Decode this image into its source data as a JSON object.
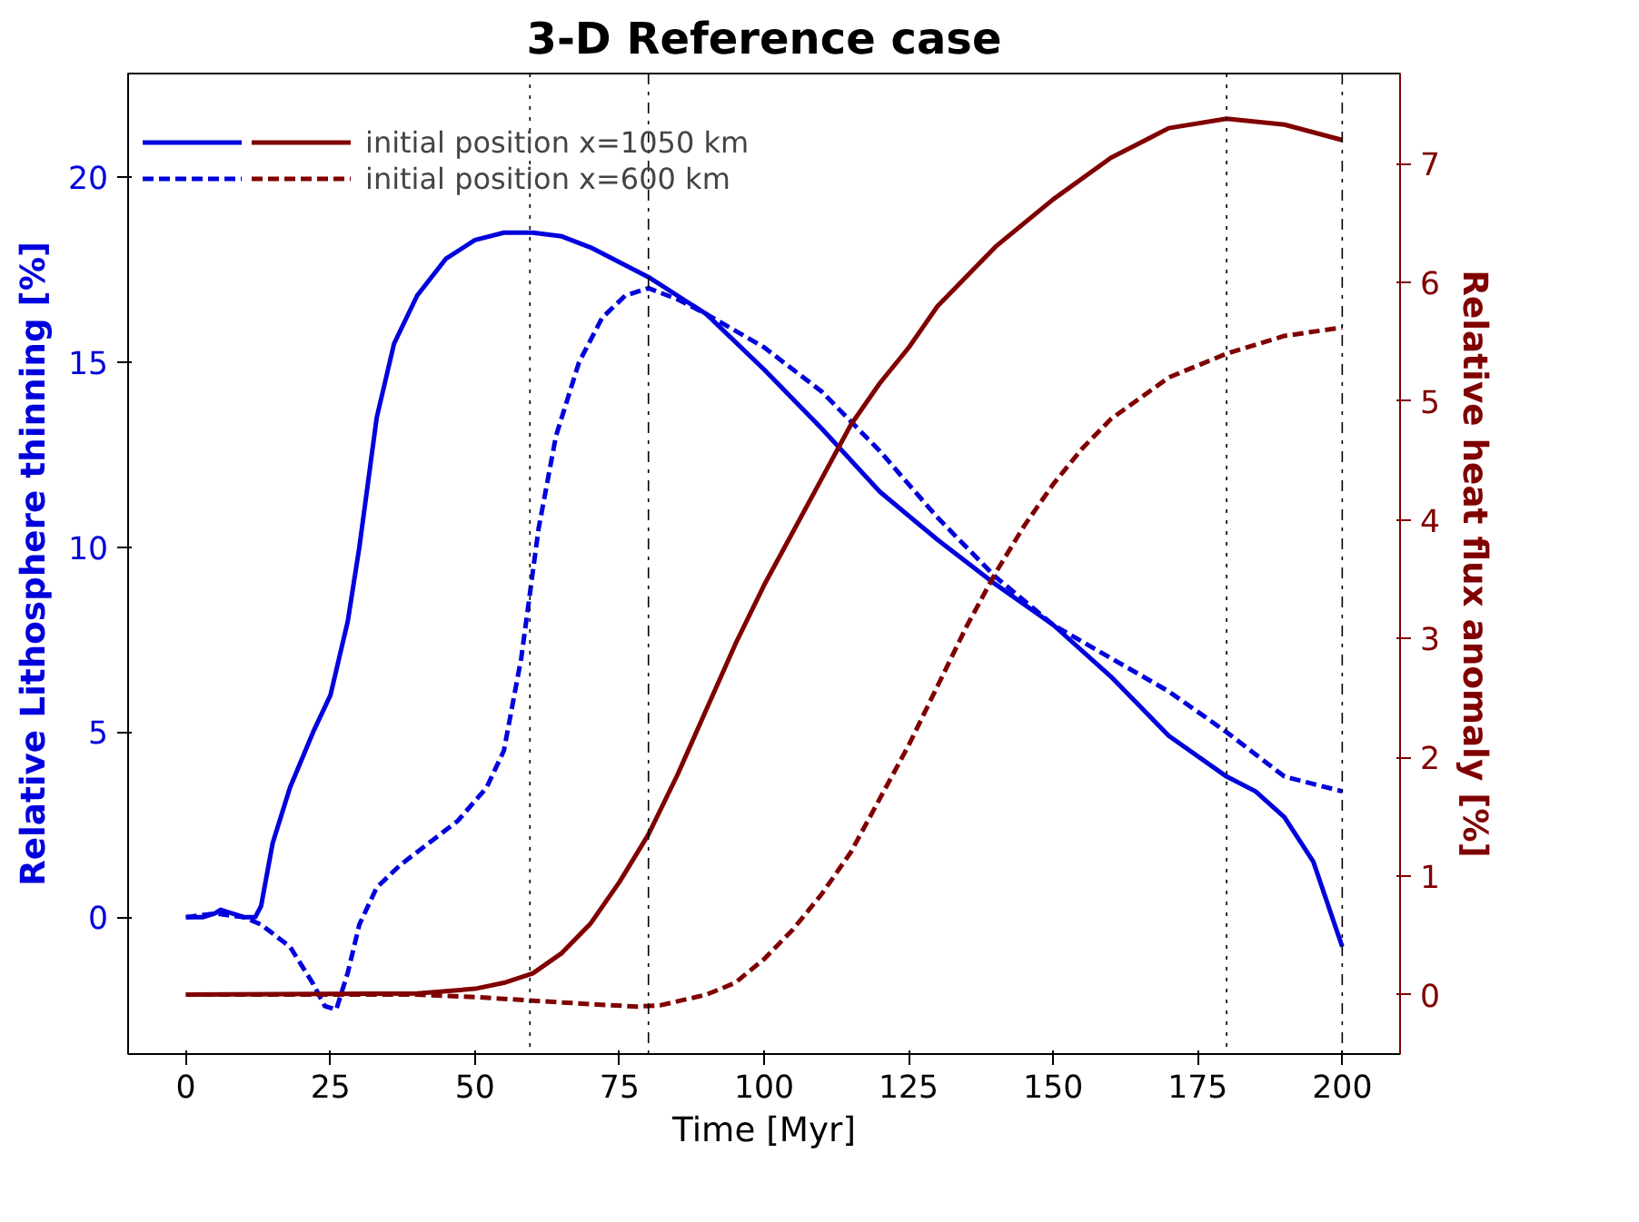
{
  "chart_data": {
    "type": "line",
    "title": "3-D Reference case",
    "xlabel": "Time [Myr]",
    "ylabel": "Relative Lithosphere thinning [%]",
    "y2label": "Relative heat flux anomaly [%]",
    "xlim": [
      -10,
      210
    ],
    "xticks": [
      0,
      25,
      50,
      75,
      100,
      125,
      150,
      175,
      200
    ],
    "ylim": [
      -3.7,
      22.8
    ],
    "yticks": [
      0,
      5,
      10,
      15,
      20
    ],
    "y2lim": [
      -0.5,
      7.76
    ],
    "y2ticks": [
      0,
      1,
      2,
      3,
      4,
      5,
      6,
      7
    ],
    "grid": false,
    "legend": "top left",
    "marker": "none",
    "series": [
      {
        "color": "#0000dd",
        "line_style": "solid",
        "x": [
          0,
          3,
          5,
          6,
          8,
          10,
          12,
          13,
          15,
          18,
          22,
          25,
          28,
          30,
          33,
          36,
          40,
          45,
          50,
          55,
          60,
          65,
          70,
          80,
          90,
          100,
          110,
          120,
          130,
          140,
          150,
          160,
          170,
          180,
          185,
          190,
          195,
          200
        ],
        "values": [
          0,
          0,
          0.1,
          0.2,
          0.1,
          0,
          0,
          0.3,
          2,
          3.5,
          5,
          6,
          8,
          10,
          13.5,
          15.5,
          16.8,
          17.8,
          18.3,
          18.5,
          18.5,
          18.4,
          18.1,
          17.3,
          16.3,
          14.8,
          13.2,
          11.5,
          10.2,
          9.0,
          7.9,
          6.5,
          4.9,
          3.8,
          3.4,
          2.7,
          1.5,
          -0.8
        ]
      },
      {
        "color": "#0000dd",
        "line_style": "dashed",
        "x": [
          0,
          5,
          10,
          13,
          18,
          22,
          24,
          26,
          28,
          30,
          33,
          37,
          42,
          47,
          52,
          55,
          58,
          61,
          64,
          68,
          72,
          76,
          80,
          85,
          90,
          100,
          110,
          120,
          130,
          140,
          150,
          160,
          170,
          180,
          190,
          200
        ],
        "values": [
          0,
          0.1,
          0,
          -0.2,
          -0.8,
          -1.8,
          -2.4,
          -2.5,
          -1.5,
          -0.2,
          0.8,
          1.4,
          2.0,
          2.6,
          3.5,
          4.5,
          7,
          10.5,
          13,
          15,
          16.2,
          16.8,
          17.0,
          16.7,
          16.3,
          15.4,
          14.2,
          12.6,
          10.8,
          9.2,
          7.9,
          7.0,
          6.1,
          5.0,
          3.8,
          3.4
        ]
      },
      {
        "name": "initial position x=1050 km",
        "color": "#800000",
        "line_style": "solid",
        "axis": "y2",
        "x": [
          0,
          40,
          50,
          55,
          60,
          65,
          70,
          75,
          80,
          85,
          90,
          95,
          100,
          105,
          110,
          115,
          120,
          125,
          130,
          140,
          150,
          160,
          170,
          180,
          190,
          200
        ],
        "values": [
          0,
          0.01,
          0.05,
          0.1,
          0.18,
          0.35,
          0.6,
          0.95,
          1.35,
          1.85,
          2.4,
          2.95,
          3.45,
          3.9,
          4.35,
          4.8,
          5.15,
          5.45,
          5.8,
          6.3,
          6.7,
          7.05,
          7.3,
          7.38,
          7.33,
          7.2
        ]
      },
      {
        "name": "initial position x=600 km",
        "color": "#800000",
        "line_style": "dashed",
        "axis": "y2",
        "x": [
          0,
          40,
          50,
          60,
          70,
          78,
          82,
          90,
          95,
          100,
          105,
          110,
          115,
          120,
          125,
          130,
          135,
          140,
          145,
          150,
          155,
          160,
          170,
          180,
          190,
          200
        ],
        "values": [
          0,
          0,
          -0.02,
          -0.05,
          -0.08,
          -0.1,
          -0.09,
          0,
          0.1,
          0.3,
          0.55,
          0.85,
          1.2,
          1.65,
          2.1,
          2.6,
          3.1,
          3.55,
          3.95,
          4.3,
          4.6,
          4.85,
          5.2,
          5.4,
          5.55,
          5.62
        ]
      }
    ],
    "ref_lines": [
      {
        "axis": "x",
        "value": 59.5,
        "line_style": "dotted",
        "color": "#000000"
      },
      {
        "axis": "x",
        "value": 80,
        "line_style": "dashdot",
        "color": "#000000"
      },
      {
        "axis": "x",
        "value": 180,
        "line_style": "dotted",
        "color": "#000000"
      },
      {
        "axis": "x",
        "value": 200,
        "line_style": "dashdot",
        "color": "#000000"
      }
    ]
  }
}
